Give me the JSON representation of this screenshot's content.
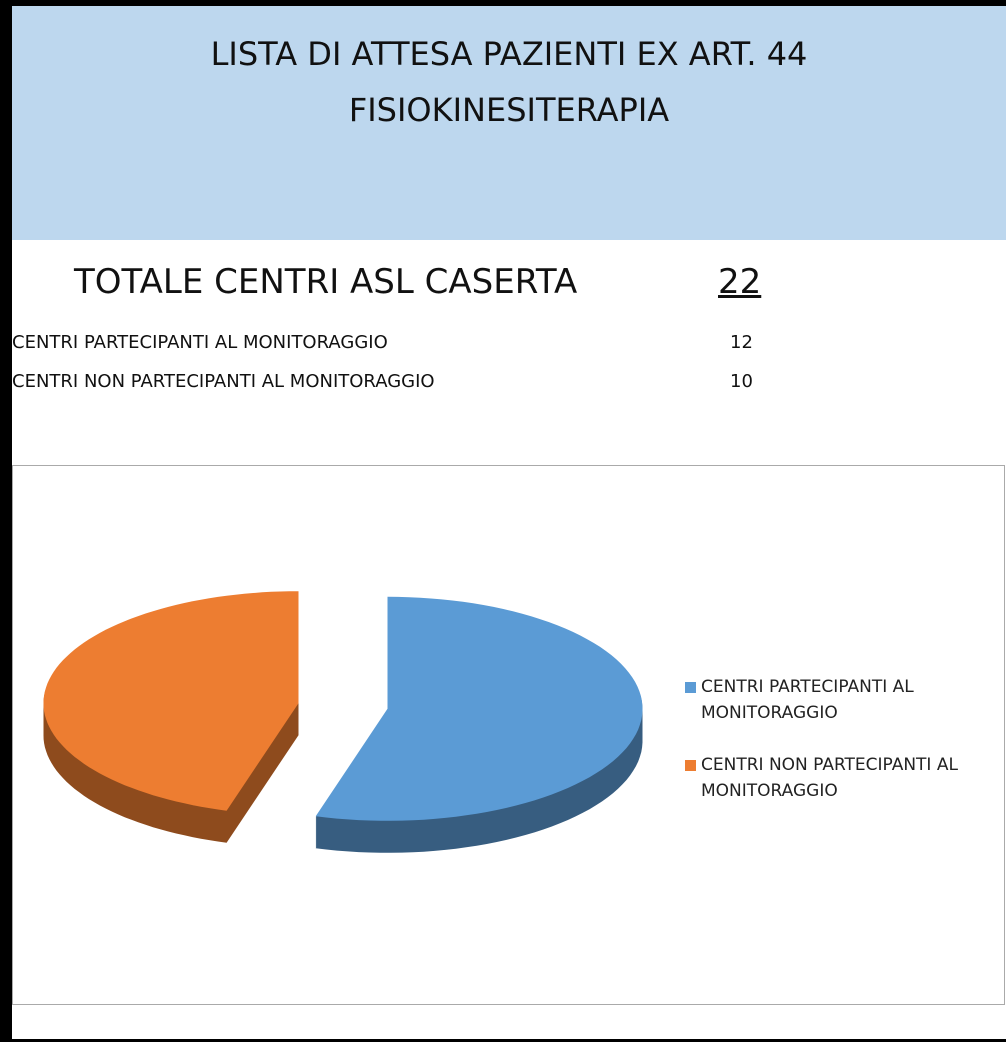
{
  "header": {
    "title_line1": "LISTA DI ATTESA  PAZIENTI EX ART. 44",
    "title_line2": "FISIOKINESITERAPIA"
  },
  "summary": {
    "total_label": "TOTALE CENTRI ASL CASERTA",
    "total_value": 22,
    "rows": [
      {
        "label": "CENTRI PARTECIPANTI AL MONITORAGGIO",
        "value": 12
      },
      {
        "label": "CENTRI NON PARTECIPANTI AL MONITORAGGIO",
        "value": 10
      }
    ]
  },
  "chart_data": {
    "type": "pie",
    "categories": [
      "CENTRI PARTECIPANTI AL MONITORAGGIO",
      "CENTRI NON PARTECIPANTI AL MONITORAGGIO"
    ],
    "values": [
      12,
      10
    ],
    "colors": [
      "#5b9bd5",
      "#ed7d31"
    ],
    "legend": "right",
    "exploded": true
  }
}
